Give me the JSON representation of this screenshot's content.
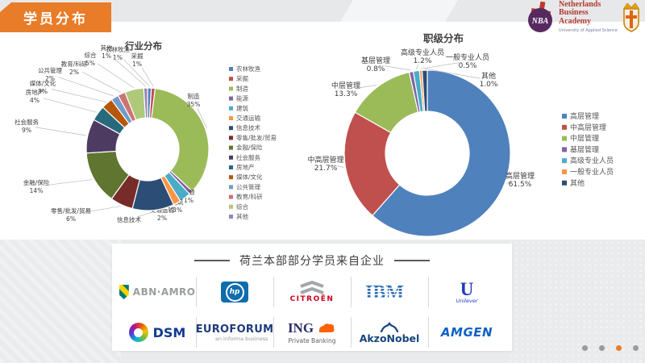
{
  "slide": {
    "banner_title": "学员分布",
    "banner_color": "#E87C28",
    "pagination": {
      "count": 4,
      "active_index": 2,
      "active_color": "#E87C28",
      "inactive_color": "#9B9B9B"
    }
  },
  "header_logo": {
    "acronym": "NBA",
    "name_lines": [
      "Netherlands",
      "Business",
      "Academy"
    ],
    "subtitle": "University of Applied Science",
    "name_color": "#B03A2E",
    "emblem_color": "#572A5F"
  },
  "chart_data": [
    {
      "type": "pie",
      "subtype": "donut",
      "title": "行业分布",
      "legend_position": "right",
      "slices": [
        {
          "label": "农林牧渔",
          "pct": 1,
          "pct_label": "1%",
          "color": "#4F81BD"
        },
        {
          "label": "采掘",
          "pct": 1,
          "pct_label": "1%",
          "color": "#C0504D"
        },
        {
          "label": "制造",
          "pct": 35,
          "pct_label": "35%",
          "color": "#9BBB59"
        },
        {
          "label": "能源",
          "pct": 1,
          "pct_label": "1%",
          "color": "#8064A2"
        },
        {
          "label": "建筑",
          "pct": 3,
          "pct_label": "3%",
          "color": "#4BACC6"
        },
        {
          "label": "交通运输",
          "pct": 2,
          "pct_label": "2%",
          "color": "#F79646"
        },
        {
          "label": "信息技术",
          "pct": 11,
          "pct_label": "",
          "color": "#2C4D75"
        },
        {
          "label": "零售/批发/贸易",
          "pct": 6,
          "pct_label": "6%",
          "color": "#772C2A"
        },
        {
          "label": "金融/保险",
          "pct": 14,
          "pct_label": "14%",
          "color": "#5F7530"
        },
        {
          "label": "社会服务",
          "pct": 9,
          "pct_label": "9%",
          "color": "#4D3B62"
        },
        {
          "label": "房地产",
          "pct": 4,
          "pct_label": "4%",
          "color": "#276A7C"
        },
        {
          "label": "媒体/文化",
          "pct": 3,
          "pct_label": "3%",
          "color": "#B65708"
        },
        {
          "label": "公共管理",
          "pct": 2,
          "pct_label": "2%",
          "color": "#729ACA"
        },
        {
          "label": "教育/科研",
          "pct": 2,
          "pct_label": "2%",
          "color": "#CD7371"
        },
        {
          "label": "综合",
          "pct": 5,
          "pct_label": "5%",
          "color": "#AFC97A"
        },
        {
          "label": "其他",
          "pct": 1,
          "pct_label": "1%",
          "color": "#9983B5"
        }
      ]
    },
    {
      "type": "pie",
      "subtype": "donut",
      "title": "职级分布",
      "legend_position": "right",
      "slices": [
        {
          "label": "高层管理",
          "pct": 61.5,
          "pct_label": "61.5%",
          "color": "#4F81BD"
        },
        {
          "label": "中高层管理",
          "pct": 21.7,
          "pct_label": "21.7%",
          "color": "#C0504D"
        },
        {
          "label": "中层管理",
          "pct": 13.3,
          "pct_label": "13.3%",
          "color": "#9BBB59"
        },
        {
          "label": "基层管理",
          "pct": 0.8,
          "pct_label": "0.8%",
          "color": "#8064A2"
        },
        {
          "label": "高级专业人员",
          "pct": 1.2,
          "pct_label": "1.2%",
          "color": "#4BACC6"
        },
        {
          "label": "一般专业人员",
          "pct": 0.5,
          "pct_label": "0.5%",
          "color": "#F79646"
        },
        {
          "label": "其他",
          "pct": 1.0,
          "pct_label": "1.0%",
          "color": "#2C4D75"
        }
      ]
    }
  ],
  "companies": {
    "section_title": "荷兰本部部分学员来自企业",
    "row1": [
      {
        "id": "abn-amro",
        "name": "ABN·AMRO"
      },
      {
        "id": "hp",
        "name": "hp"
      },
      {
        "id": "citroen",
        "name": "CITROËN"
      },
      {
        "id": "ibm",
        "name": "IBM"
      },
      {
        "id": "unilever",
        "name": "U",
        "sub": "Unilever"
      },
      {
        "id": "dsm",
        "name": "DSM"
      },
      {
        "id": "euroforum",
        "name": "EUROFORUM",
        "sub": "an informa business"
      },
      {
        "id": "ing",
        "name": "ING",
        "sub": "Private Banking"
      },
      {
        "id": "akzonobel",
        "name": "AkzoNobel"
      },
      {
        "id": "amgen",
        "name": "AMGEN"
      }
    ]
  }
}
